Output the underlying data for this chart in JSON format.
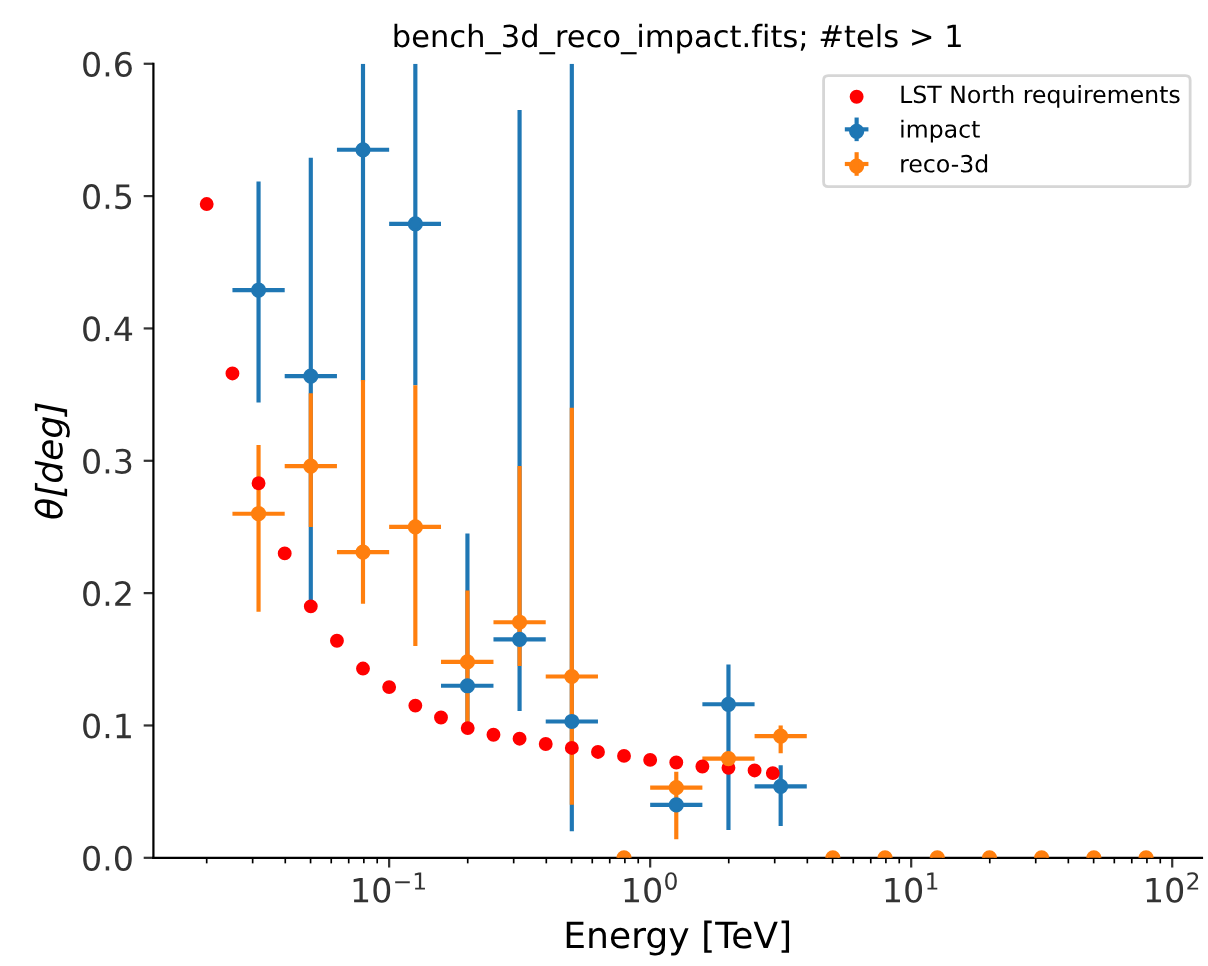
{
  "chart_data": {
    "type": "scatter",
    "title": "bench_3d_reco_impact.fits; #tels > 1",
    "xlabel": "Energy [TeV]",
    "ylabel": "θ[deg]",
    "log": "x",
    "xlim": [
      0.0125,
      130
    ],
    "ylim": [
      0,
      0.6
    ],
    "xticks": [
      {
        "value": 0.1,
        "label": "10$^{−1}$"
      },
      {
        "value": 1,
        "label": "10$^{0}$"
      },
      {
        "value": 10,
        "label": "10$^{1}$"
      },
      {
        "value": 100,
        "label": "10$^{2}$"
      }
    ],
    "yticks": [
      {
        "value": 0,
        "label": "0.0"
      },
      0.1,
      0.2,
      0.3,
      0.4,
      0.5,
      0.6
    ],
    "legend": "top right",
    "marker": "circle",
    "grid": false,
    "series": [
      {
        "name": "LST North requirements",
        "color": "#ff0000",
        "x": [
          0.02,
          0.0251,
          0.0316,
          0.0398,
          0.0501,
          0.0631,
          0.0794,
          0.1,
          0.126,
          0.158,
          0.2,
          0.251,
          0.316,
          0.398,
          0.501,
          0.631,
          0.794,
          1,
          1.259,
          1.585,
          1.995,
          2.512,
          2.95
        ],
        "values": [
          0.494,
          0.366,
          0.283,
          0.23,
          0.19,
          0.164,
          0.143,
          0.129,
          0.115,
          0.106,
          0.098,
          0.093,
          0.09,
          0.086,
          0.083,
          0.08,
          0.077,
          0.074,
          0.072,
          0.069,
          0.068,
          0.066,
          0.064
        ]
      },
      {
        "name": "impact",
        "color": "#1f77b4",
        "x": [
          0.0316,
          0.0501,
          0.0794,
          0.126,
          0.1995,
          0.316,
          0.501,
          1.259,
          1.995,
          3.162
        ],
        "values": [
          0.429,
          0.364,
          0.535,
          0.479,
          0.13,
          0.165,
          0.103,
          0.04,
          0.116,
          0.054
        ],
        "errors": [
          [
            0.344,
            0.511
          ],
          [
            0.19,
            0.529
          ],
          [
            0.36,
            0.6
          ],
          [
            0.357,
            0.6
          ],
          [
            0.1,
            0.245
          ],
          [
            0.111,
            0.565
          ],
          [
            0.02,
            0.6
          ],
          null,
          [
            0.021,
            0.146
          ],
          [
            0.024,
            0.07
          ]
        ],
        "xerrors": [
          [
            0.0251,
            0.0398
          ],
          [
            0.0398,
            0.0631
          ],
          [
            0.0631,
            0.1
          ],
          [
            0.1,
            0.158
          ],
          [
            0.158,
            0.251
          ],
          [
            0.251,
            0.398
          ],
          [
            0.398,
            0.631
          ],
          [
            1,
            1.585
          ],
          [
            1.585,
            2.512
          ],
          [
            2.512,
            3.981
          ]
        ]
      },
      {
        "name": "reco-3d",
        "color": "#ff7f0e",
        "x": [
          0.0316,
          0.0501,
          0.0794,
          0.126,
          0.1995,
          0.316,
          0.501,
          0.794,
          1.259,
          1.995,
          3.162,
          5.01,
          7.94,
          12.59,
          19.95,
          31.6,
          50.1,
          79.4
        ],
        "values": [
          0.26,
          0.296,
          0.231,
          0.25,
          0.148,
          0.178,
          0.137,
          0,
          0.053,
          0.075,
          0.092,
          0,
          0,
          0,
          0,
          0,
          0,
          0
        ],
        "errors": [
          [
            0.186,
            0.312
          ],
          [
            0.25,
            0.351
          ],
          [
            0.192,
            0.361
          ],
          [
            0.16,
            0.357
          ],
          [
            0.098,
            0.202
          ],
          [
            0.145,
            0.296
          ],
          [
            0.04,
            0.34
          ],
          null,
          [
            0.014,
            0.065
          ],
          null,
          [
            0.079,
            0.1
          ],
          null,
          null,
          null,
          null,
          null,
          null,
          null
        ],
        "xerrors": [
          [
            0.0251,
            0.0398
          ],
          [
            0.0398,
            0.0631
          ],
          [
            0.0631,
            0.1
          ],
          [
            0.1,
            0.158
          ],
          [
            0.158,
            0.251
          ],
          [
            0.251,
            0.398
          ],
          [
            0.398,
            0.631
          ],
          null,
          [
            1,
            1.585
          ],
          [
            1.585,
            2.512
          ],
          [
            2.512,
            3.981
          ],
          null,
          null,
          null,
          null,
          null,
          null,
          null
        ]
      }
    ]
  }
}
